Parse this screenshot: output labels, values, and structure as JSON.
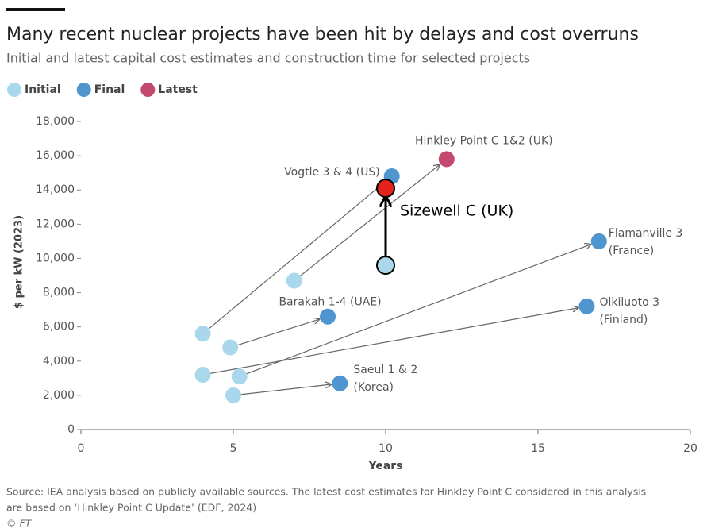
{
  "chart_data": {
    "type": "scatter",
    "title": "Many recent nuclear projects have been hit by delays and cost overruns",
    "subtitle": "Initial and latest capital cost estimates and construction time for selected projects",
    "x_label": "Years",
    "y_label": "$ per kW (2023)",
    "xlim": [
      0,
      20
    ],
    "xticks": [
      0,
      5,
      10,
      15,
      20
    ],
    "ylim": [
      0,
      18000
    ],
    "yticks": [
      0,
      {
        "value": 2000,
        "label": "2,000"
      },
      {
        "value": 4000,
        "label": "4,000"
      },
      {
        "value": 6000,
        "label": "6,000"
      },
      {
        "value": 8000,
        "label": "8,000"
      },
      {
        "value": 10000,
        "label": "10,000"
      },
      {
        "value": 12000,
        "label": "12,000"
      },
      {
        "value": 14000,
        "label": "14,000"
      },
      {
        "value": 16000,
        "label": "16,000"
      },
      {
        "value": 18000,
        "label": "18,000"
      }
    ],
    "grid": false,
    "legend": "top-left",
    "series": [
      {
        "name": "Initial",
        "color": "#a9d8ec",
        "x": [
          4.9,
          5.2,
          4,
          5,
          4,
          7
        ],
        "values": [
          4800,
          3100,
          3200,
          2000,
          5600,
          8700
        ]
      },
      {
        "name": "Final",
        "color": "#4f95d0",
        "x": [
          8.1,
          17,
          16.6,
          8.5,
          10.2
        ],
        "values": [
          6600,
          11000,
          7200,
          2700,
          14800
        ],
        "labels": [
          [
            "Barakah 1-4 (UAE)"
          ],
          [
            "Flamanville 3",
            "(France)"
          ],
          [
            "Olkiluoto 3",
            "(Finland)"
          ],
          [
            "Saeul 1 & 2",
            "(Korea)"
          ],
          [
            "Vogtle 3 & 4 (US)"
          ]
        ]
      },
      {
        "name": "Latest",
        "color": "#c4496e",
        "x": [
          12
        ],
        "values": [
          15800
        ],
        "labels": [
          [
            "Hinkley Point C 1&2 (UK)"
          ]
        ]
      }
    ],
    "annotation": {
      "label": "Sizewell C (UK)",
      "x": 10,
      "values": [
        9600,
        14100
      ],
      "marker_colors": [
        "#a9d8ec",
        "#e3231c"
      ],
      "color": "#000000"
    },
    "source": [
      "Source: IEA analysis based on publicly available sources. The latest cost estimates for Hinkley Point C considered in this analysis",
      "are based on ‘Hinkley Point C Update’ (EDF, 2024)",
      "© FT"
    ]
  }
}
